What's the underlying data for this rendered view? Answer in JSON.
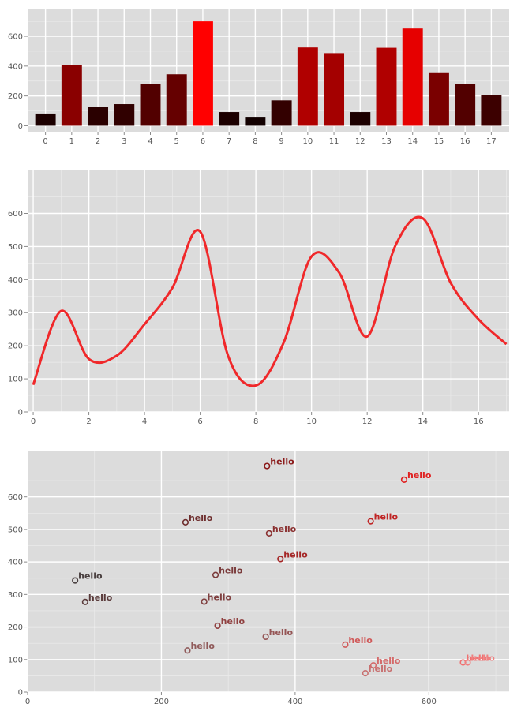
{
  "chart_data": [
    {
      "type": "bar",
      "categories": [
        "0",
        "1",
        "2",
        "3",
        "4",
        "5",
        "6",
        "7",
        "8",
        "9",
        "10",
        "11",
        "12",
        "13",
        "14",
        "15",
        "16",
        "17"
      ],
      "values": [
        82,
        408,
        128,
        145,
        278,
        345,
        700,
        92,
        60,
        170,
        525,
        487,
        92,
        523,
        652,
        358,
        278,
        205
      ],
      "colors": [
        "#1c0000",
        "#8a0000",
        "#2a0000",
        "#300000",
        "#520000",
        "#650000",
        "#ff0000",
        "#1c0000",
        "#120000",
        "#330000",
        "#b00000",
        "#a40000",
        "#1c0000",
        "#b00000",
        "#e60000",
        "#7a0000",
        "#520000",
        "#3c0000"
      ],
      "ylim": [
        -40,
        780
      ],
      "yticks": [
        0,
        200,
        400,
        600
      ],
      "title": "",
      "xlabel": "",
      "ylabel": ""
    },
    {
      "type": "line",
      "x": [
        0,
        1,
        2,
        3,
        4,
        5,
        6,
        7,
        8,
        9,
        10,
        11,
        12,
        13,
        14,
        15,
        16,
        17
      ],
      "values": [
        82,
        305,
        160,
        170,
        265,
        375,
        545,
        170,
        80,
        210,
        470,
        420,
        228,
        500,
        585,
        390,
        280,
        205
      ],
      "color": "#f0282a",
      "xlim": [
        -0.2,
        17.1
      ],
      "ylim": [
        0,
        730
      ],
      "xticks": [
        0,
        2,
        4,
        6,
        8,
        10,
        12,
        14,
        16
      ],
      "yticks": [
        0,
        100,
        200,
        300,
        400,
        500,
        600
      ],
      "title": "",
      "xlabel": "",
      "ylabel": ""
    },
    {
      "type": "scatter",
      "points": [
        {
          "x": 358,
          "y": 695,
          "label": "hello",
          "color": "#8b1a1a"
        },
        {
          "x": 563,
          "y": 653,
          "label": "hello",
          "color": "#e02020"
        },
        {
          "x": 236,
          "y": 522,
          "label": "hello",
          "color": "#6e2e2e"
        },
        {
          "x": 513,
          "y": 525,
          "label": "hello",
          "color": "#c02525"
        },
        {
          "x": 361,
          "y": 488,
          "label": "hello",
          "color": "#8a3030"
        },
        {
          "x": 378,
          "y": 409,
          "label": "hello",
          "color": "#a52525"
        },
        {
          "x": 71,
          "y": 343,
          "label": "hello",
          "color": "#4a4040"
        },
        {
          "x": 281,
          "y": 360,
          "label": "hello",
          "color": "#7a3a3a"
        },
        {
          "x": 86,
          "y": 277,
          "label": "hello",
          "color": "#5a3a3a"
        },
        {
          "x": 264,
          "y": 278,
          "label": "hello",
          "color": "#804040"
        },
        {
          "x": 284,
          "y": 204,
          "label": "hello",
          "color": "#904040"
        },
        {
          "x": 356,
          "y": 170,
          "label": "hello",
          "color": "#955555"
        },
        {
          "x": 239,
          "y": 128,
          "label": "hello",
          "color": "#905a5a"
        },
        {
          "x": 475,
          "y": 146,
          "label": "hello",
          "color": "#d05858"
        },
        {
          "x": 517,
          "y": 82,
          "label": "hello",
          "color": "#d46a6a"
        },
        {
          "x": 505,
          "y": 58,
          "label": "hello",
          "color": "#c87070"
        },
        {
          "x": 651,
          "y": 91,
          "label": "hello",
          "color": "#f07070"
        },
        {
          "x": 658,
          "y": 91,
          "label": "hello",
          "color": "#f08080"
        }
      ],
      "xlim": [
        0,
        720
      ],
      "ylim": [
        0,
        740
      ],
      "xticks": [
        0,
        200,
        400,
        600
      ],
      "yticks": [
        0,
        100,
        200,
        300,
        400,
        500,
        600
      ],
      "title": "",
      "xlabel": "",
      "ylabel": ""
    }
  ]
}
